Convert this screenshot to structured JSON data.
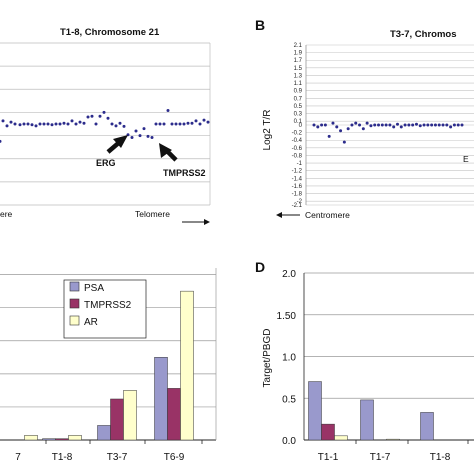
{
  "panels": {
    "B": "B",
    "D": "D"
  },
  "chart_data": [
    {
      "type": "scatter",
      "title": "T1-8, Chromosome 21",
      "annotations": [
        "ERG",
        "TMPRSS2"
      ],
      "xaxis_labels": {
        "left": "ere",
        "right": "Telomere"
      },
      "ylim": [
        -2.1,
        2.1
      ],
      "grid": true,
      "x": [
        0,
        3,
        7,
        11,
        15,
        20,
        24,
        28,
        32,
        36,
        40,
        44,
        48,
        52,
        56,
        60,
        64,
        68,
        72,
        76,
        80,
        84,
        88,
        92,
        96,
        100,
        104,
        108,
        112,
        116,
        120,
        124,
        128,
        132,
        136,
        140,
        144,
        148,
        152,
        156,
        160,
        164,
        168,
        172,
        176,
        180,
        184,
        188,
        192,
        196,
        200,
        204,
        208
      ],
      "y": [
        -0.45,
        0.08,
        -0.05,
        0.05,
        0.0,
        -0.02,
        0.0,
        0.0,
        -0.02,
        -0.05,
        0.0,
        0.0,
        0.0,
        -0.02,
        0.0,
        0.0,
        0.02,
        0.0,
        0.08,
        0.0,
        0.05,
        0.02,
        0.18,
        0.2,
        0.0,
        0.2,
        0.3,
        0.15,
        0.0,
        -0.05,
        0.02,
        -0.06,
        -0.28,
        -0.35,
        -0.18,
        -0.3,
        -0.12,
        -0.32,
        -0.35,
        0.0,
        0.0,
        0.0,
        0.35,
        0.0,
        0.0,
        0.0,
        0.0,
        0.02,
        0.02,
        0.08,
        0.0,
        0.1,
        0.05
      ]
    },
    {
      "type": "scatter",
      "title": "T3-7, Chromos",
      "ylabel": "Log2 T/R",
      "xaxis_labels": {
        "left": "Centromere"
      },
      "annotations": [
        "E"
      ],
      "yticks": [
        "2.1",
        "1.9",
        "1.7",
        "1.5",
        "1.3",
        "1.1",
        "0.9",
        "0.7",
        "0.5",
        "0.3",
        "0.1",
        "0",
        "-0.2",
        "-0.4",
        "-0.6",
        "-0.8",
        "-1",
        "-1.2",
        "-1.4",
        "-1.6",
        "-1.8",
        "-2",
        "-2.1"
      ],
      "grid": true,
      "x": [
        0,
        4,
        8,
        12,
        16,
        20,
        24,
        28,
        32,
        36,
        40,
        44,
        48,
        52,
        56,
        60,
        64,
        68,
        72,
        76,
        80,
        84,
        88,
        92,
        96,
        100,
        104,
        108,
        112,
        116,
        120,
        124,
        128,
        132,
        136,
        140,
        144,
        148,
        152,
        156
      ],
      "y": [
        0.0,
        -0.05,
        0.0,
        0.0,
        -0.3,
        0.05,
        -0.05,
        -0.15,
        -0.45,
        -0.1,
        0.0,
        0.05,
        0.0,
        -0.1,
        0.05,
        -0.02,
        0.0,
        0.0,
        0.0,
        0.0,
        0.0,
        -0.05,
        0.02,
        -0.05,
        0.0,
        0.0,
        0.0,
        0.02,
        -0.02,
        0.0,
        0.0,
        0.0,
        0.0,
        0.0,
        0.0,
        0.0,
        -0.05,
        0.0,
        0.0,
        0.0
      ]
    },
    {
      "type": "bar",
      "categories": [
        "7",
        "T1-8",
        "T3-7",
        "T6-9"
      ],
      "series": [
        {
          "name": "PSA",
          "color": "#9999cc",
          "values": [
            0.0,
            0.02,
            0.22,
            1.25
          ]
        },
        {
          "name": "TMPRSS2",
          "color": "#993366",
          "values": [
            0.0,
            0.02,
            0.62,
            0.78
          ]
        },
        {
          "name": "AR",
          "color": "#ffffcc",
          "values": [
            0.07,
            0.07,
            0.75,
            2.25
          ]
        }
      ],
      "ylim": [
        0,
        2.6
      ],
      "legend": "top-right"
    },
    {
      "type": "bar",
      "categories": [
        "T1-1",
        "T1-7",
        "T1-8"
      ],
      "ylabel": "Target/PBGD",
      "yticks": [
        "0.0",
        "0.5",
        "1.0",
        "1.50",
        "2.0"
      ],
      "ylim": [
        0,
        2.0
      ],
      "series": [
        {
          "name": "PSA",
          "color": "#9999cc",
          "values": [
            0.7,
            0.48,
            0.33
          ]
        },
        {
          "name": "TMPRSS2",
          "color": "#993366",
          "values": [
            0.19,
            0.0,
            0.0
          ]
        },
        {
          "name": "AR",
          "color": "#ffffcc",
          "values": [
            0.05,
            0.01,
            0.0
          ]
        }
      ]
    }
  ]
}
